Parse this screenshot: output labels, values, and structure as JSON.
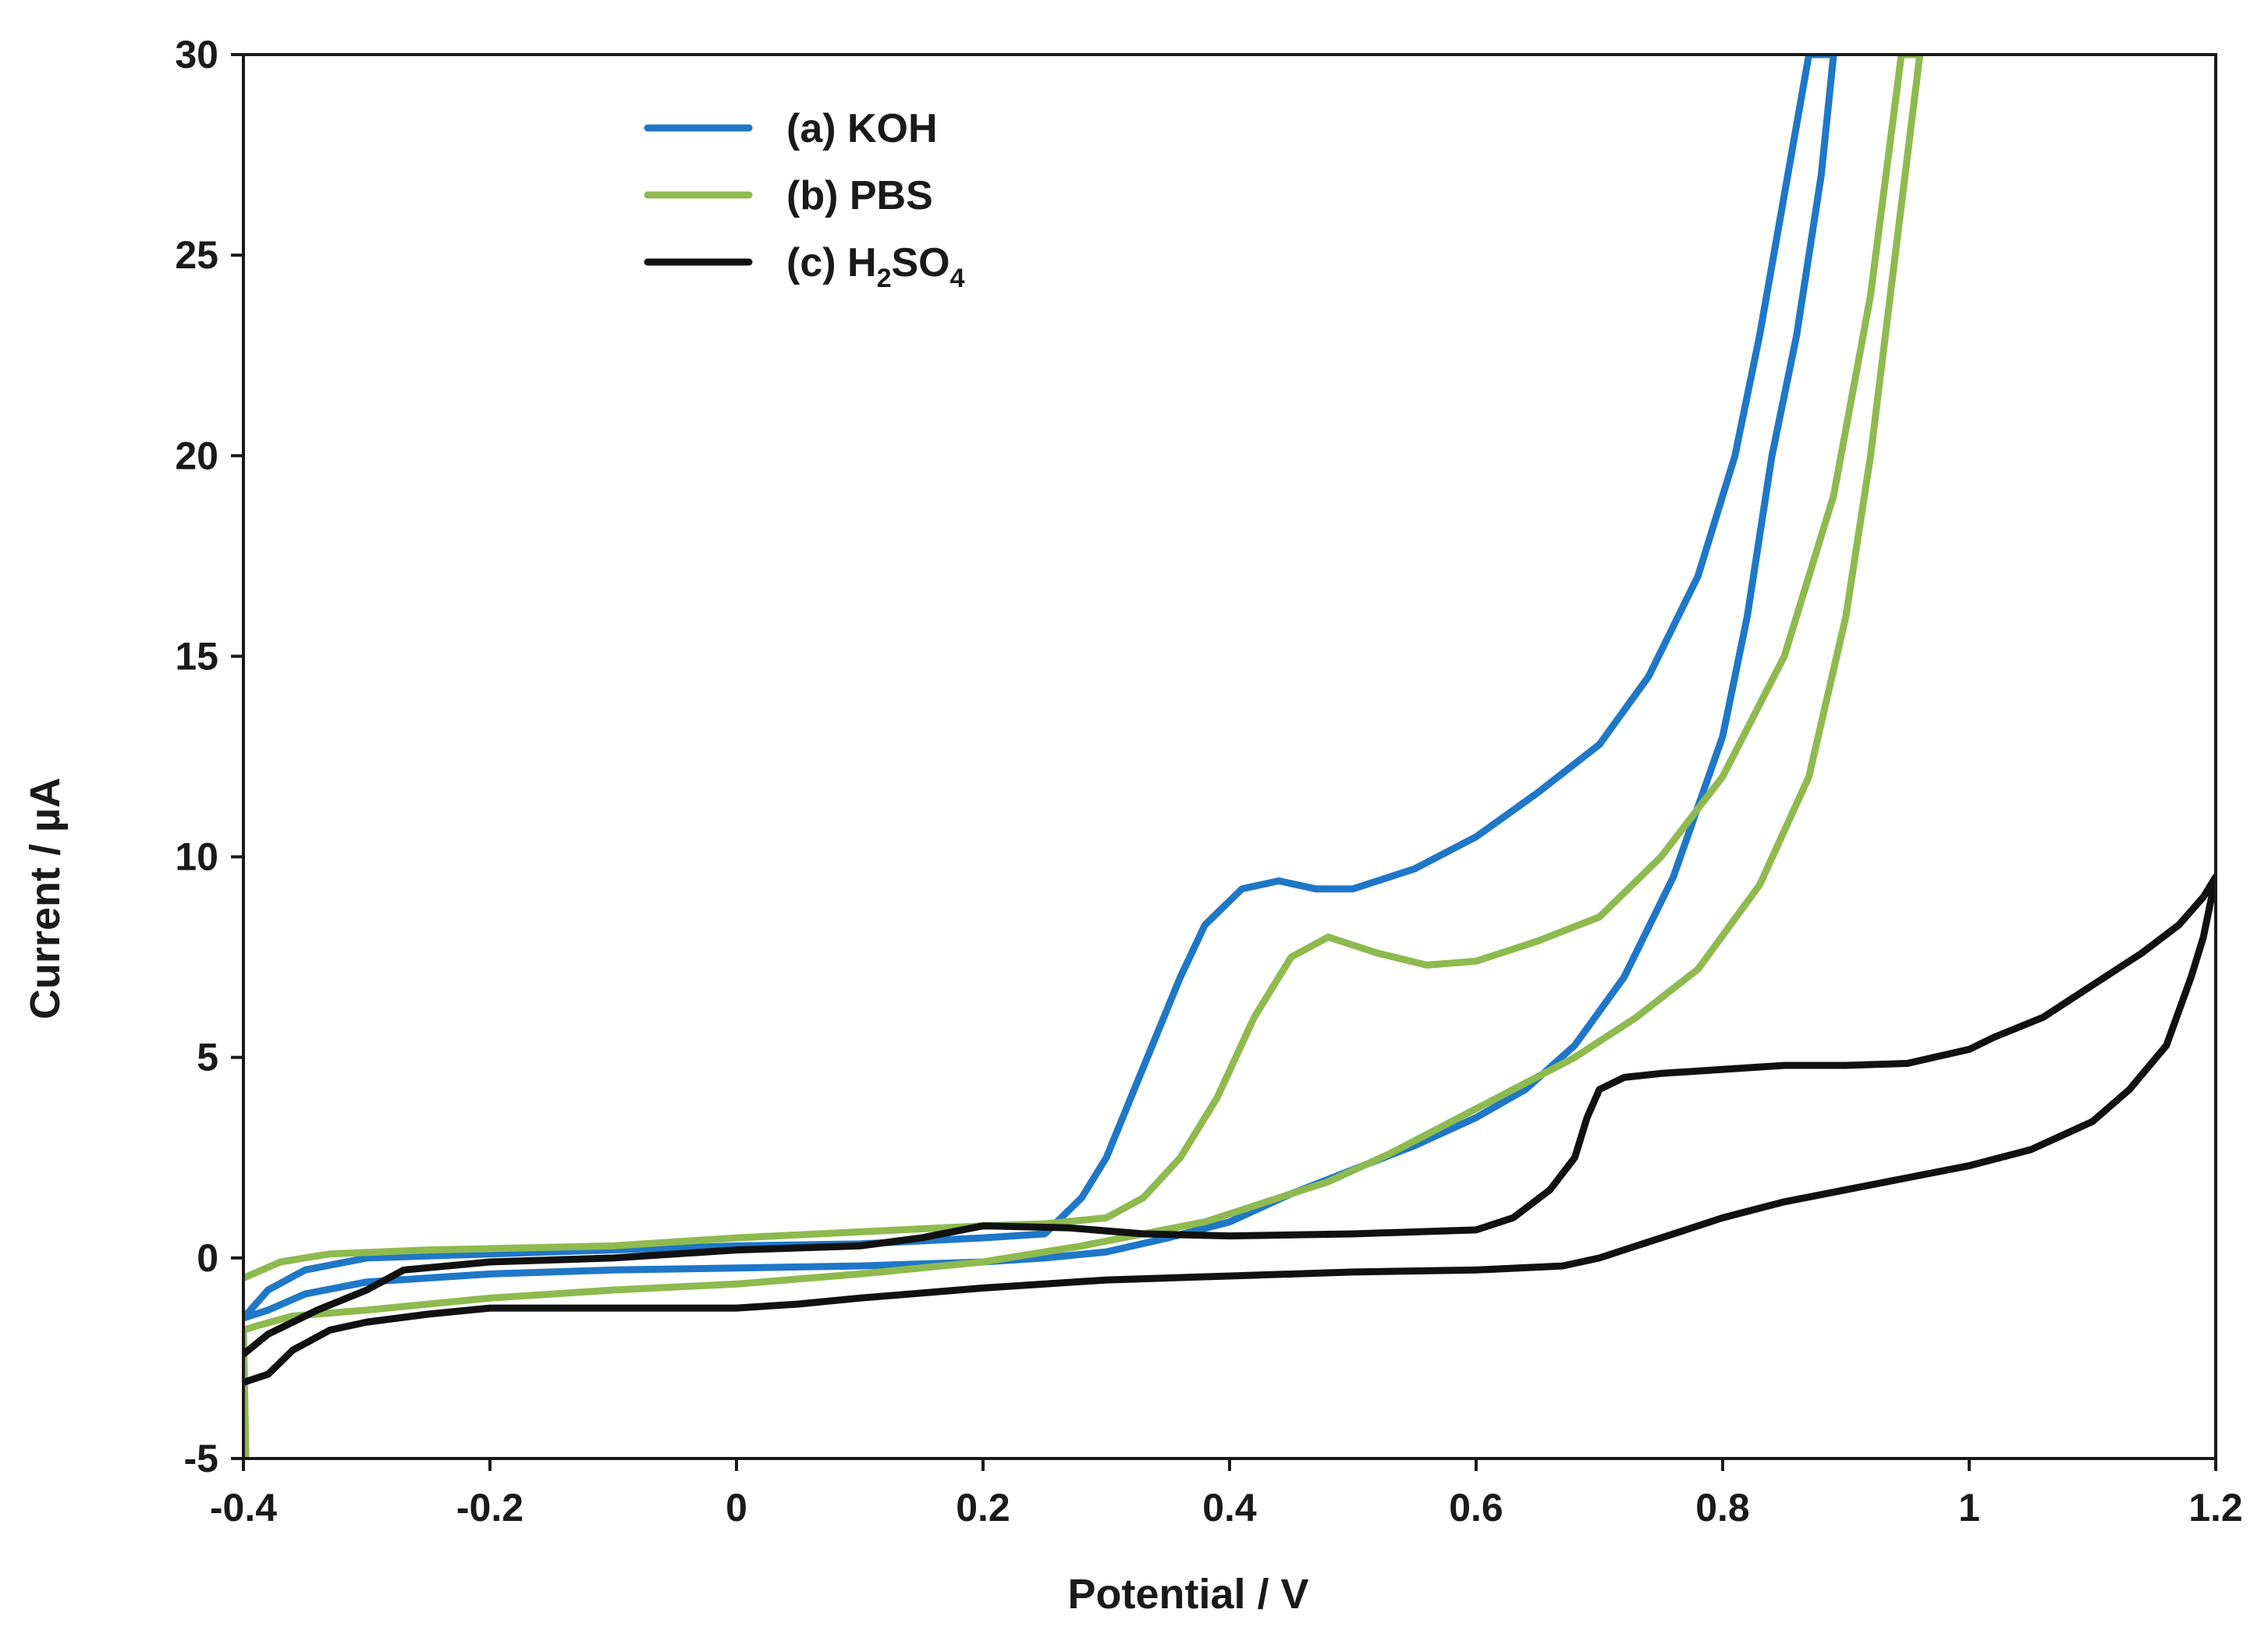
{
  "chart_data": {
    "type": "line",
    "title": "",
    "xlabel": "Potential / V",
    "ylabel": "Current / µA",
    "xlim": [
      -0.4,
      1.2
    ],
    "ylim": [
      -5,
      30
    ],
    "xticks": [
      -0.4,
      -0.2,
      0,
      0.2,
      0.4,
      0.6,
      0.8,
      1,
      1.2
    ],
    "xtick_labels": [
      "-0.4",
      "-0.2",
      "0",
      "0.2",
      "0.4",
      "0.6",
      "0.8",
      "1",
      "1.2"
    ],
    "yticks": [
      -5,
      0,
      5,
      10,
      15,
      20,
      25,
      30
    ],
    "ytick_labels": [
      "-5",
      "0",
      "5",
      "10",
      "15",
      "20",
      "25",
      "30"
    ],
    "grid": false,
    "legend_position": "top-left",
    "series": [
      {
        "name": "(a) KOH",
        "legend_prefix": "(a) KOH",
        "legend_sub1": "",
        "legend_mid": "",
        "legend_sub2": "",
        "color": "#1f77c8",
        "points": [
          [
            -0.4,
            -1.5
          ],
          [
            -0.38,
            -0.8
          ],
          [
            -0.35,
            -0.3
          ],
          [
            -0.3,
            0.0
          ],
          [
            -0.2,
            0.1
          ],
          [
            0.0,
            0.3
          ],
          [
            0.1,
            0.35
          ],
          [
            0.2,
            0.5
          ],
          [
            0.25,
            0.6
          ],
          [
            0.28,
            1.5
          ],
          [
            0.3,
            2.5
          ],
          [
            0.32,
            4.0
          ],
          [
            0.34,
            5.5
          ],
          [
            0.36,
            7.0
          ],
          [
            0.38,
            8.3
          ],
          [
            0.41,
            9.2
          ],
          [
            0.44,
            9.4
          ],
          [
            0.47,
            9.2
          ],
          [
            0.5,
            9.2
          ],
          [
            0.55,
            9.7
          ],
          [
            0.6,
            10.5
          ],
          [
            0.65,
            11.6
          ],
          [
            0.7,
            12.8
          ],
          [
            0.74,
            14.5
          ],
          [
            0.78,
            17.0
          ],
          [
            0.81,
            20.0
          ],
          [
            0.83,
            23.0
          ],
          [
            0.85,
            26.5
          ],
          [
            0.87,
            30.0
          ],
          [
            0.89,
            30.0
          ],
          [
            0.88,
            27.0
          ],
          [
            0.86,
            23.0
          ],
          [
            0.84,
            20.0
          ],
          [
            0.82,
            16.0
          ],
          [
            0.8,
            13.0
          ],
          [
            0.76,
            9.5
          ],
          [
            0.72,
            7.0
          ],
          [
            0.68,
            5.3
          ],
          [
            0.64,
            4.2
          ],
          [
            0.6,
            3.5
          ],
          [
            0.55,
            2.8
          ],
          [
            0.5,
            2.2
          ],
          [
            0.45,
            1.6
          ],
          [
            0.4,
            0.9
          ],
          [
            0.35,
            0.5
          ],
          [
            0.3,
            0.15
          ],
          [
            0.25,
            0.0
          ],
          [
            0.2,
            -0.1
          ],
          [
            0.1,
            -0.2
          ],
          [
            0.0,
            -0.25
          ],
          [
            -0.1,
            -0.3
          ],
          [
            -0.2,
            -0.4
          ],
          [
            -0.3,
            -0.6
          ],
          [
            -0.35,
            -0.9
          ],
          [
            -0.38,
            -1.3
          ],
          [
            -0.4,
            -1.5
          ]
        ]
      },
      {
        "name": "(b) PBS",
        "legend_prefix": "(b) PBS",
        "legend_sub1": "",
        "legend_mid": "",
        "legend_sub2": "",
        "color": "#8fba4f",
        "points": [
          [
            -0.4,
            -0.5
          ],
          [
            -0.37,
            -0.1
          ],
          [
            -0.33,
            0.1
          ],
          [
            -0.25,
            0.2
          ],
          [
            -0.1,
            0.3
          ],
          [
            0.0,
            0.5
          ],
          [
            0.1,
            0.65
          ],
          [
            0.2,
            0.8
          ],
          [
            0.25,
            0.85
          ],
          [
            0.3,
            1.0
          ],
          [
            0.33,
            1.5
          ],
          [
            0.36,
            2.5
          ],
          [
            0.39,
            4.0
          ],
          [
            0.42,
            6.0
          ],
          [
            0.45,
            7.5
          ],
          [
            0.48,
            8.0
          ],
          [
            0.52,
            7.6
          ],
          [
            0.56,
            7.3
          ],
          [
            0.6,
            7.4
          ],
          [
            0.65,
            7.9
          ],
          [
            0.7,
            8.5
          ],
          [
            0.75,
            10.0
          ],
          [
            0.8,
            12.0
          ],
          [
            0.85,
            15.0
          ],
          [
            0.89,
            19.0
          ],
          [
            0.92,
            24.0
          ],
          [
            0.945,
            30.0
          ],
          [
            0.96,
            30.0
          ],
          [
            0.94,
            25.0
          ],
          [
            0.92,
            20.0
          ],
          [
            0.9,
            16.0
          ],
          [
            0.87,
            12.0
          ],
          [
            0.83,
            9.3
          ],
          [
            0.78,
            7.2
          ],
          [
            0.73,
            6.0
          ],
          [
            0.68,
            5.0
          ],
          [
            0.63,
            4.2
          ],
          [
            0.58,
            3.4
          ],
          [
            0.53,
            2.6
          ],
          [
            0.48,
            1.9
          ],
          [
            0.43,
            1.4
          ],
          [
            0.38,
            0.9
          ],
          [
            0.33,
            0.6
          ],
          [
            0.28,
            0.3
          ],
          [
            0.2,
            -0.1
          ],
          [
            0.1,
            -0.4
          ],
          [
            0.0,
            -0.65
          ],
          [
            -0.1,
            -0.8
          ],
          [
            -0.2,
            -1.0
          ],
          [
            -0.3,
            -1.3
          ],
          [
            -0.36,
            -1.45
          ],
          [
            -0.39,
            -1.7
          ],
          [
            -0.4,
            -1.8
          ],
          [
            -0.398,
            -5.0
          ]
        ]
      },
      {
        "name": "(c) H2SO4",
        "legend_prefix": "(c) H",
        "legend_sub1": "2",
        "legend_mid": "SO",
        "legend_sub2": "4",
        "color": "#111111",
        "points": [
          [
            -0.4,
            -3.1
          ],
          [
            -0.38,
            -2.9
          ],
          [
            -0.36,
            -2.3
          ],
          [
            -0.33,
            -1.8
          ],
          [
            -0.3,
            -1.6
          ],
          [
            -0.25,
            -1.4
          ],
          [
            -0.2,
            -1.25
          ],
          [
            -0.1,
            -1.25
          ],
          [
            0.0,
            -1.25
          ],
          [
            0.05,
            -1.15
          ],
          [
            0.1,
            -1.0
          ],
          [
            0.2,
            -0.75
          ],
          [
            0.3,
            -0.55
          ],
          [
            0.4,
            -0.45
          ],
          [
            0.5,
            -0.35
          ],
          [
            0.6,
            -0.3
          ],
          [
            0.67,
            -0.2
          ],
          [
            0.7,
            0.0
          ],
          [
            0.73,
            0.3
          ],
          [
            0.77,
            0.7
          ],
          [
            0.8,
            1.0
          ],
          [
            0.85,
            1.4
          ],
          [
            0.9,
            1.7
          ],
          [
            0.95,
            2.0
          ],
          [
            1.0,
            2.3
          ],
          [
            1.05,
            2.7
          ],
          [
            1.1,
            3.4
          ],
          [
            1.13,
            4.2
          ],
          [
            1.16,
            5.3
          ],
          [
            1.18,
            7.0
          ],
          [
            1.19,
            8.0
          ],
          [
            1.2,
            9.5
          ],
          [
            1.19,
            9.0
          ],
          [
            1.17,
            8.3
          ],
          [
            1.14,
            7.6
          ],
          [
            1.1,
            6.8
          ],
          [
            1.06,
            6.0
          ],
          [
            1.02,
            5.5
          ],
          [
            1.0,
            5.2
          ],
          [
            0.95,
            4.85
          ],
          [
            0.9,
            4.8
          ],
          [
            0.85,
            4.8
          ],
          [
            0.8,
            4.7
          ],
          [
            0.75,
            4.6
          ],
          [
            0.72,
            4.5
          ],
          [
            0.7,
            4.2
          ],
          [
            0.69,
            3.5
          ],
          [
            0.68,
            2.5
          ],
          [
            0.66,
            1.7
          ],
          [
            0.63,
            1.0
          ],
          [
            0.6,
            0.7
          ],
          [
            0.5,
            0.6
          ],
          [
            0.4,
            0.55
          ],
          [
            0.33,
            0.6
          ],
          [
            0.27,
            0.75
          ],
          [
            0.2,
            0.8
          ],
          [
            0.15,
            0.5
          ],
          [
            0.1,
            0.3
          ],
          [
            0.0,
            0.2
          ],
          [
            -0.1,
            0.0
          ],
          [
            -0.2,
            -0.1
          ],
          [
            -0.27,
            -0.3
          ],
          [
            -0.3,
            -0.8
          ],
          [
            -0.34,
            -1.3
          ],
          [
            -0.38,
            -1.9
          ],
          [
            -0.4,
            -2.4
          ]
        ]
      }
    ]
  }
}
